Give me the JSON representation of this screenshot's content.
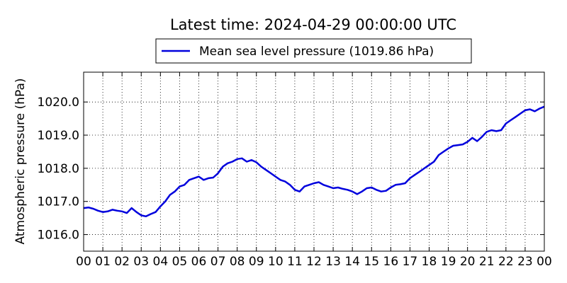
{
  "chart_data": {
    "type": "line",
    "title": "Latest time: 2024-04-29 00:00:00 UTC",
    "ylabel": "Atmospheric pressure (hPa)",
    "xlabel": "",
    "ylim": [
      1015.5,
      1020.9
    ],
    "xlim": [
      0,
      24
    ],
    "yticks": [
      1016.0,
      1017.0,
      1018.0,
      1019.0,
      1020.0
    ],
    "ytick_labels": [
      "1016.0",
      "1017.0",
      "1018.0",
      "1019.0",
      "1020.0"
    ],
    "xticks": [
      0,
      1,
      2,
      3,
      4,
      5,
      6,
      7,
      8,
      9,
      10,
      11,
      12,
      13,
      14,
      15,
      16,
      17,
      18,
      19,
      20,
      21,
      22,
      23,
      24
    ],
    "xtick_labels": [
      "00",
      "01",
      "02",
      "03",
      "04",
      "05",
      "06",
      "07",
      "08",
      "09",
      "10",
      "11",
      "12",
      "13",
      "14",
      "15",
      "16",
      "17",
      "18",
      "19",
      "20",
      "21",
      "22",
      "23",
      "00"
    ],
    "grid": true,
    "legend_position": "top-center",
    "series": [
      {
        "name": "Mean sea level pressure (1019.86 hPa)",
        "color": "#0000dd",
        "x": [
          0,
          0.25,
          0.5,
          0.75,
          1,
          1.25,
          1.5,
          1.75,
          2,
          2.25,
          2.5,
          2.75,
          3,
          3.25,
          3.5,
          3.75,
          4,
          4.25,
          4.5,
          4.75,
          5,
          5.25,
          5.5,
          5.75,
          6,
          6.25,
          6.5,
          6.75,
          7,
          7.25,
          7.5,
          7.75,
          8,
          8.25,
          8.5,
          8.75,
          9,
          9.25,
          9.5,
          9.75,
          10,
          10.25,
          10.5,
          10.75,
          11,
          11.25,
          11.5,
          11.75,
          12,
          12.25,
          12.5,
          12.75,
          13,
          13.25,
          13.5,
          13.75,
          14,
          14.25,
          14.5,
          14.75,
          15,
          15.25,
          15.5,
          15.75,
          16,
          16.25,
          16.5,
          16.75,
          17,
          17.25,
          17.5,
          17.75,
          18,
          18.25,
          18.5,
          18.75,
          19,
          19.25,
          19.5,
          19.75,
          20,
          20.25,
          20.5,
          20.75,
          21,
          21.25,
          21.5,
          21.75,
          22,
          22.25,
          22.5,
          22.75,
          23,
          23.25,
          23.5,
          23.75,
          24
        ],
        "values": [
          1016.8,
          1016.82,
          1016.78,
          1016.72,
          1016.68,
          1016.7,
          1016.75,
          1016.72,
          1016.7,
          1016.65,
          1016.8,
          1016.68,
          1016.58,
          1016.55,
          1016.62,
          1016.68,
          1016.85,
          1017.0,
          1017.2,
          1017.3,
          1017.45,
          1017.5,
          1017.65,
          1017.7,
          1017.75,
          1017.65,
          1017.7,
          1017.72,
          1017.85,
          1018.05,
          1018.15,
          1018.2,
          1018.28,
          1018.3,
          1018.2,
          1018.25,
          1018.18,
          1018.05,
          1017.95,
          1017.85,
          1017.75,
          1017.65,
          1017.6,
          1017.5,
          1017.35,
          1017.3,
          1017.45,
          1017.5,
          1017.55,
          1017.58,
          1017.5,
          1017.45,
          1017.4,
          1017.42,
          1017.38,
          1017.35,
          1017.3,
          1017.22,
          1017.3,
          1017.4,
          1017.42,
          1017.35,
          1017.3,
          1017.32,
          1017.42,
          1017.5,
          1017.52,
          1017.55,
          1017.7,
          1017.8,
          1017.9,
          1018.0,
          1018.1,
          1018.2,
          1018.4,
          1018.5,
          1018.6,
          1018.68,
          1018.7,
          1018.72,
          1018.8,
          1018.92,
          1018.82,
          1018.95,
          1019.1,
          1019.15,
          1019.12,
          1019.15,
          1019.35,
          1019.45,
          1019.55,
          1019.65,
          1019.75,
          1019.78,
          1019.72,
          1019.8,
          1019.86
        ]
      }
    ]
  }
}
